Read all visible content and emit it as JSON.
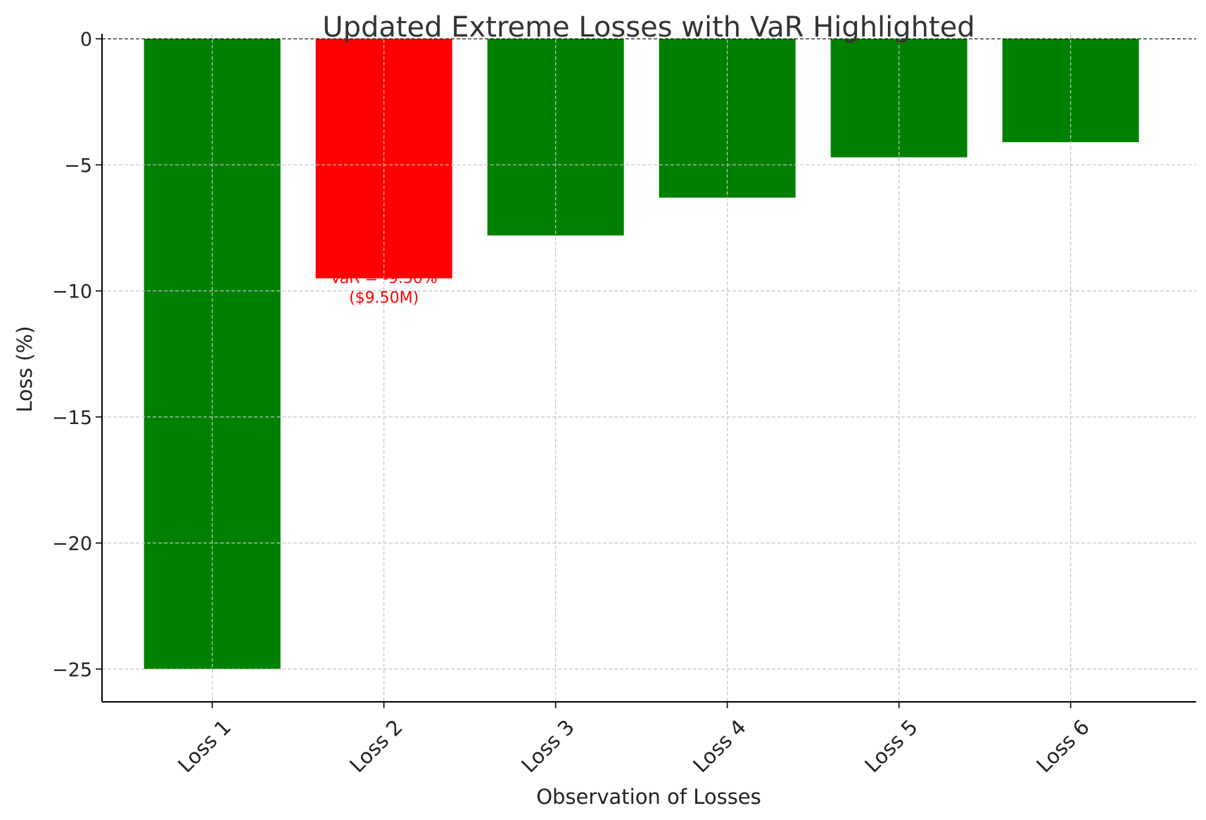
{
  "chart_data": {
    "type": "bar",
    "title": "Updated Extreme Losses with VaR Highlighted",
    "xlabel": "Observation of Losses",
    "ylabel": "Loss (%)",
    "categories": [
      "Loss 1",
      "Loss 2",
      "Loss 3",
      "Loss 4",
      "Loss 5",
      "Loss 6"
    ],
    "values": [
      -25.0,
      -9.5,
      -7.8,
      -6.3,
      -4.7,
      -4.1
    ],
    "bar_colors": [
      "#008000",
      "#ff0000",
      "#008000",
      "#008000",
      "#008000",
      "#008000"
    ],
    "ylim": [
      -26.3,
      0.2
    ],
    "yticks": [
      0,
      -5,
      -10,
      -15,
      -20,
      -25
    ],
    "ytick_labels": [
      "0",
      "−5",
      "−10",
      "−15",
      "−20",
      "−25"
    ],
    "grid": true,
    "zero_line": "dashed",
    "annotation": {
      "category": "Loss 2",
      "line1": "VaR = -9.50%",
      "line2": "($9.50M)",
      "color": "#ff0000"
    }
  }
}
